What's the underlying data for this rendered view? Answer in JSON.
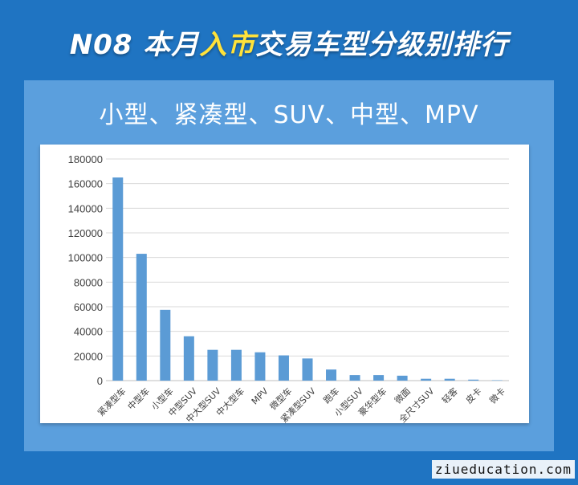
{
  "header": {
    "title_prefix": "N08 本月",
    "title_highlight": "入市",
    "title_suffix": "交易车型分级别排行"
  },
  "subtitle": "小型、紧凑型、SUV、中型、MPV",
  "watermark": "ziueducation.com",
  "colors": {
    "bar": "#5b9bd5",
    "background": "#1f74c2",
    "panel": "#5b9fdd",
    "highlight": "#ffe23a"
  },
  "chart_data": {
    "type": "bar",
    "categories": [
      "紧凑型车",
      "中型车",
      "小型车",
      "中型SUV",
      "中大型SUV",
      "中大型车",
      "MPV",
      "微型车",
      "紧凑型SUV",
      "跑车",
      "小型SUV",
      "豪华型车",
      "微面",
      "全尺寸SUV",
      "轻客",
      "皮卡",
      "微卡"
    ],
    "values": [
      165000,
      103000,
      57500,
      36000,
      25000,
      25000,
      23000,
      20500,
      18000,
      9000,
      4500,
      4500,
      4000,
      1500,
      1500,
      800,
      300
    ],
    "yticks": [
      0,
      20000,
      40000,
      60000,
      80000,
      100000,
      120000,
      140000,
      160000,
      180000
    ],
    "ylim": [
      0,
      180000
    ],
    "grid": true,
    "xlabel": "",
    "ylabel": ""
  }
}
